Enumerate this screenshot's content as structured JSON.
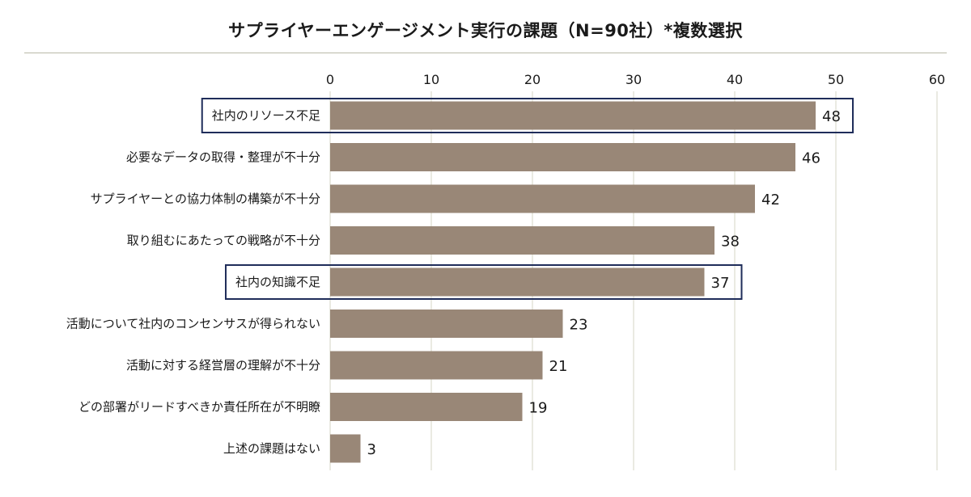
{
  "chart_data": {
    "type": "bar",
    "orientation": "horizontal",
    "title": "サプライヤーエンゲージメント実行の課題（N=90社）*複数選択",
    "categories": [
      "社内のリソース不足",
      "必要なデータの取得・整理が不十分",
      "サプライヤーとの協力体制の構築が不十分",
      "取り組むにあたっての戦略が不十分",
      "社内の知識不足",
      "活動について社内のコンセンサスが得られない",
      "活動に対する経営層の理解が不十分",
      "どの部署がリードすべきか責任所在が不明瞭",
      "上述の課題はない"
    ],
    "values": [
      48,
      46,
      42,
      38,
      37,
      23,
      21,
      19,
      3
    ],
    "highlighted": [
      "社内のリソース不足",
      "社内の知識不足"
    ],
    "xlim": [
      0,
      60
    ],
    "xticks": [
      0,
      10,
      20,
      30,
      40,
      50,
      60
    ],
    "axis_position": "top",
    "grid": true,
    "bar_color": "#998777",
    "highlight_box_color": "#1f2d5a",
    "grid_color": "#d6d6c4"
  }
}
